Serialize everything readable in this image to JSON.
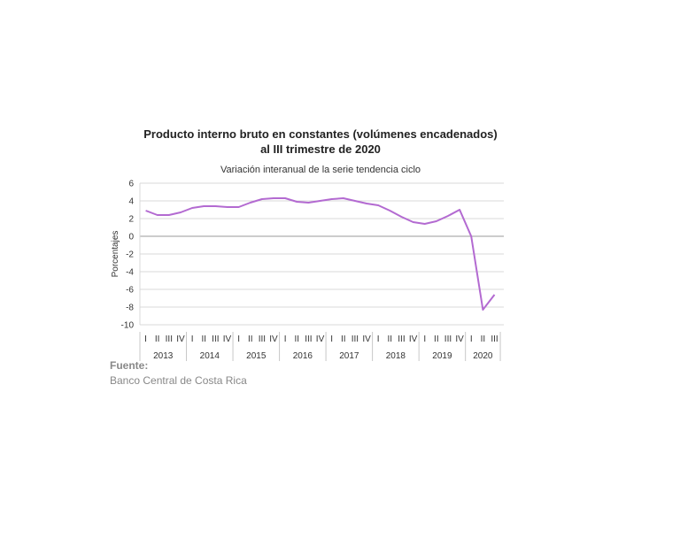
{
  "chart_data": {
    "type": "line",
    "title_line1": "Producto interno bruto en constantes (volúmenes encadenados)",
    "title_line2": "al III trimestre de 2020",
    "subtitle": "Variación interanual de la serie tendencia ciclo",
    "ylabel": "Porcentajes",
    "ylim": [
      -10,
      6
    ],
    "yticks": [
      6,
      4,
      2,
      0,
      -2,
      -4,
      -6,
      -8,
      -10
    ],
    "grid": true,
    "quarter_labels": [
      "I",
      "II",
      "III",
      "IV"
    ],
    "years": [
      "2013",
      "2014",
      "2015",
      "2016",
      "2017",
      "2018",
      "2019",
      "2020"
    ],
    "x": [
      "2013-I",
      "2013-II",
      "2013-III",
      "2013-IV",
      "2014-I",
      "2014-II",
      "2014-III",
      "2014-IV",
      "2015-I",
      "2015-II",
      "2015-III",
      "2015-IV",
      "2016-I",
      "2016-II",
      "2016-III",
      "2016-IV",
      "2017-I",
      "2017-II",
      "2017-III",
      "2017-IV",
      "2018-I",
      "2018-II",
      "2018-III",
      "2018-IV",
      "2019-I",
      "2019-II",
      "2019-III",
      "2019-IV",
      "2020-I",
      "2020-II",
      "2020-III"
    ],
    "values": [
      2.9,
      2.4,
      2.4,
      2.7,
      3.2,
      3.4,
      3.4,
      3.3,
      3.3,
      3.8,
      4.2,
      4.3,
      4.3,
      3.9,
      3.8,
      4.0,
      4.2,
      4.3,
      4.0,
      3.7,
      3.5,
      2.9,
      2.2,
      1.6,
      1.4,
      1.7,
      2.3,
      3.0,
      0.0,
      -8.3,
      -6.6
    ],
    "line_color": "#b36ad1"
  },
  "source": {
    "label": "Fuente:",
    "text": "Banco Central de Costa Rica"
  }
}
